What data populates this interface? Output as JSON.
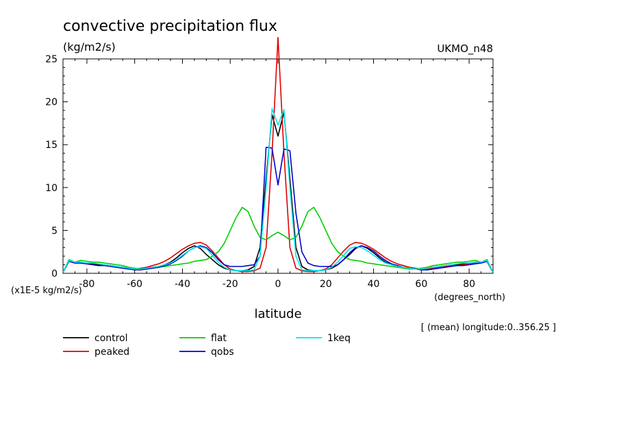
{
  "chart_data": {
    "type": "line",
    "title": "convective precipitation flux",
    "units_label": "(kg/m2/s)",
    "model_label": "UKMO_n48",
    "xlabel": "latitude",
    "x_units_label": "(degrees_north)",
    "y_scale_label": "(x1E-5 kg/m2/s)",
    "subtitle": "[ (mean) longitude:0..356.25 ]",
    "xlim": [
      -90,
      90
    ],
    "ylim": [
      0,
      25
    ],
    "x_ticks": [
      -80,
      -60,
      -40,
      -20,
      0,
      20,
      40,
      60,
      80
    ],
    "x_tick_labels": [
      "-80",
      "-60",
      "-40",
      "-20",
      "0",
      "20",
      "40",
      "60",
      "80"
    ],
    "y_ticks": [
      0,
      5,
      10,
      15,
      20,
      25
    ],
    "y_tick_labels": [
      "0",
      "5",
      "10",
      "15",
      "20",
      "25"
    ],
    "x": [
      -90,
      -87.5,
      -85,
      -82.5,
      -80,
      -77.5,
      -75,
      -72.5,
      -70,
      -67.5,
      -65,
      -62.5,
      -60,
      -57.5,
      -55,
      -52.5,
      -50,
      -47.5,
      -45,
      -42.5,
      -40,
      -37.5,
      -35,
      -32.5,
      -30,
      -27.5,
      -25,
      -22.5,
      -20,
      -17.5,
      -15,
      -12.5,
      -10,
      -7.5,
      -5,
      -2.5,
      0,
      2.5,
      5,
      7.5,
      10,
      12.5,
      15,
      17.5,
      20,
      22.5,
      25,
      27.5,
      30,
      32.5,
      35,
      37.5,
      40,
      42.5,
      45,
      47.5,
      50,
      52.5,
      55,
      57.5,
      60,
      62.5,
      65,
      67.5,
      70,
      72.5,
      75,
      77.5,
      80,
      82.5,
      85,
      87.5,
      90
    ],
    "series": [
      {
        "name": "control",
        "color": "#000000",
        "values": [
          0.1,
          1.5,
          1.3,
          1.2,
          1.2,
          1.1,
          1.0,
          1.0,
          0.9,
          0.8,
          0.7,
          0.6,
          0.5,
          0.5,
          0.6,
          0.7,
          0.8,
          1.0,
          1.3,
          1.8,
          2.4,
          2.9,
          3.2,
          2.9,
          2.2,
          1.6,
          1.0,
          0.6,
          0.4,
          0.3,
          0.3,
          0.4,
          0.8,
          3.0,
          11.0,
          18.5,
          16.0,
          18.8,
          11.0,
          3.0,
          0.8,
          0.4,
          0.3,
          0.3,
          0.4,
          0.6,
          1.0,
          1.6,
          2.2,
          2.9,
          3.2,
          2.9,
          2.4,
          1.8,
          1.3,
          1.0,
          0.8,
          0.7,
          0.6,
          0.5,
          0.5,
          0.6,
          0.7,
          0.8,
          0.9,
          1.0,
          1.0,
          1.1,
          1.2,
          1.2,
          1.3,
          1.5,
          0.1
        ]
      },
      {
        "name": "peaked",
        "color": "#e00000",
        "values": [
          0.1,
          1.4,
          1.2,
          1.2,
          1.1,
          1.0,
          0.9,
          0.9,
          0.8,
          0.7,
          0.6,
          0.5,
          0.5,
          0.6,
          0.7,
          0.9,
          1.1,
          1.4,
          1.8,
          2.3,
          2.8,
          3.2,
          3.5,
          3.6,
          3.3,
          2.6,
          1.8,
          1.0,
          0.5,
          0.3,
          0.2,
          0.2,
          0.3,
          0.6,
          3.0,
          14.0,
          27.5,
          14.0,
          3.0,
          0.6,
          0.3,
          0.2,
          0.2,
          0.3,
          0.5,
          1.0,
          1.8,
          2.6,
          3.3,
          3.6,
          3.5,
          3.2,
          2.8,
          2.3,
          1.8,
          1.4,
          1.1,
          0.9,
          0.7,
          0.6,
          0.5,
          0.5,
          0.6,
          0.7,
          0.8,
          0.9,
          0.9,
          1.0,
          1.1,
          1.2,
          1.2,
          1.4,
          0.1
        ]
      },
      {
        "name": "flat",
        "color": "#00cc00",
        "values": [
          0.1,
          1.6,
          1.3,
          1.5,
          1.4,
          1.3,
          1.3,
          1.2,
          1.1,
          1.0,
          0.9,
          0.7,
          0.6,
          0.5,
          0.5,
          0.6,
          0.7,
          0.8,
          0.9,
          1.0,
          1.1,
          1.2,
          1.4,
          1.5,
          1.6,
          2.0,
          2.5,
          3.5,
          5.0,
          6.5,
          7.7,
          7.2,
          5.5,
          4.2,
          3.9,
          4.4,
          4.8,
          4.4,
          3.9,
          4.2,
          5.5,
          7.2,
          7.7,
          6.5,
          5.0,
          3.5,
          2.5,
          2.0,
          1.6,
          1.5,
          1.4,
          1.2,
          1.1,
          1.0,
          0.9,
          0.8,
          0.7,
          0.6,
          0.5,
          0.5,
          0.6,
          0.7,
          0.9,
          1.0,
          1.1,
          1.2,
          1.3,
          1.3,
          1.4,
          1.5,
          1.3,
          1.6,
          0.1
        ]
      },
      {
        "name": "qobs",
        "color": "#0000cc",
        "values": [
          0.1,
          1.4,
          1.2,
          1.2,
          1.1,
          1.0,
          0.9,
          0.9,
          0.8,
          0.7,
          0.6,
          0.5,
          0.4,
          0.4,
          0.5,
          0.6,
          0.7,
          0.9,
          1.1,
          1.5,
          2.0,
          2.6,
          3.0,
          3.2,
          3.0,
          2.4,
          1.6,
          1.0,
          0.8,
          0.8,
          0.8,
          0.9,
          1.0,
          2.0,
          14.7,
          14.6,
          10.3,
          14.5,
          14.3,
          7.0,
          2.5,
          1.2,
          0.9,
          0.8,
          0.8,
          0.8,
          1.0,
          1.6,
          2.4,
          3.0,
          3.2,
          3.0,
          2.6,
          2.0,
          1.5,
          1.1,
          0.9,
          0.7,
          0.6,
          0.5,
          0.4,
          0.4,
          0.5,
          0.6,
          0.7,
          0.8,
          0.9,
          0.9,
          1.0,
          1.1,
          1.2,
          1.4,
          0.1
        ]
      },
      {
        "name": "1keq",
        "color": "#00e5ee",
        "values": [
          0.1,
          1.5,
          1.3,
          1.3,
          1.2,
          1.2,
          1.1,
          1.0,
          0.9,
          0.8,
          0.7,
          0.6,
          0.5,
          0.5,
          0.6,
          0.7,
          0.8,
          1.0,
          1.2,
          1.6,
          2.1,
          2.6,
          3.0,
          3.1,
          2.9,
          2.1,
          1.3,
          0.7,
          0.4,
          0.3,
          0.3,
          0.3,
          0.4,
          2.0,
          10.0,
          19.2,
          17.3,
          19.1,
          10.0,
          2.0,
          0.4,
          0.3,
          0.3,
          0.3,
          0.4,
          0.7,
          1.3,
          2.1,
          2.9,
          3.1,
          3.0,
          2.6,
          2.1,
          1.6,
          1.2,
          1.0,
          0.8,
          0.7,
          0.6,
          0.5,
          0.5,
          0.6,
          0.7,
          0.8,
          0.9,
          1.0,
          1.1,
          1.2,
          1.2,
          1.3,
          1.3,
          1.5,
          0.1
        ]
      }
    ]
  }
}
